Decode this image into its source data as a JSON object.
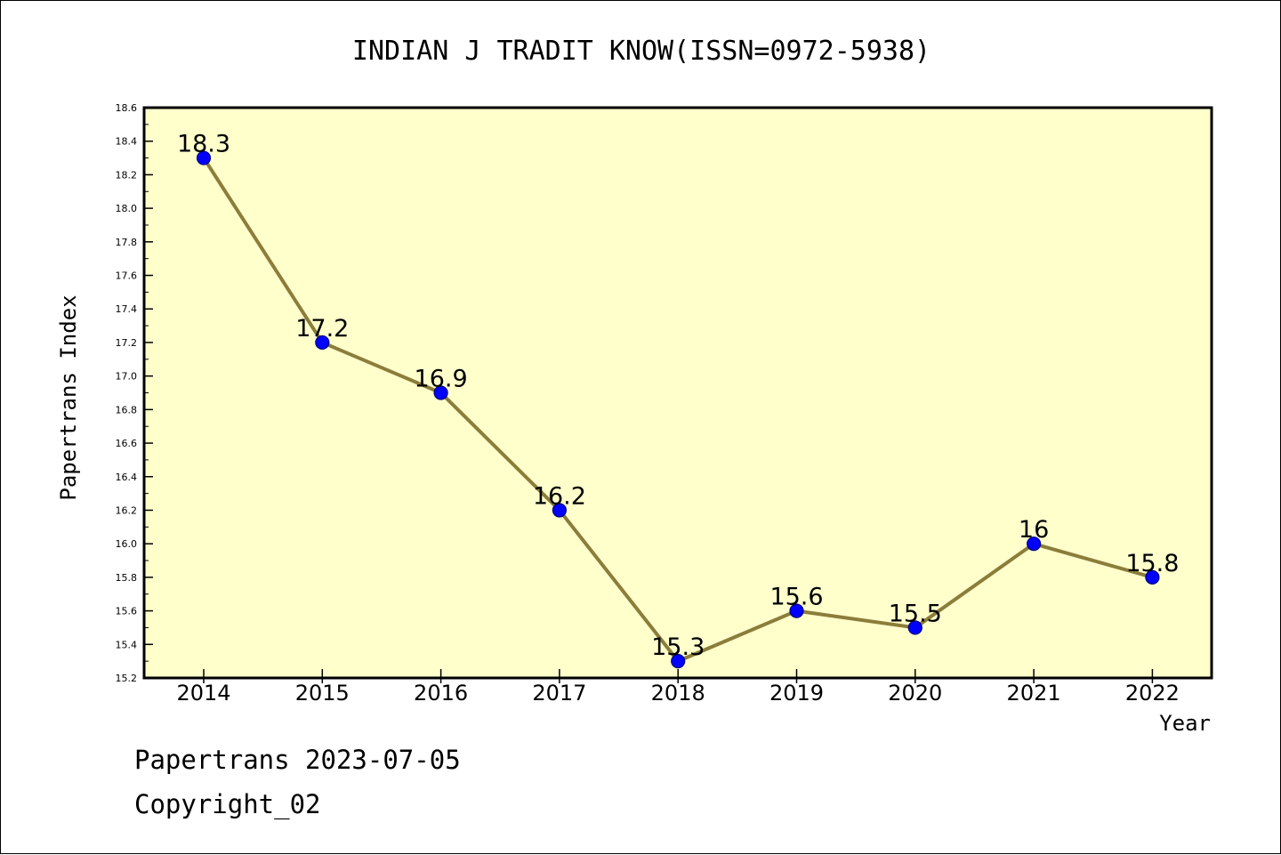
{
  "chart_data": {
    "type": "line",
    "title": "INDIAN J TRADIT KNOW(ISSN=0972-5938)",
    "xlabel": "Year",
    "ylabel": "Papertrans Index",
    "categories": [
      "2014",
      "2015",
      "2016",
      "2017",
      "2018",
      "2019",
      "2020",
      "2021",
      "2022"
    ],
    "series": [
      {
        "values": [
          18.3,
          17.2,
          16.9,
          16.2,
          15.3,
          15.6,
          15.5,
          16.0,
          15.8
        ],
        "labels": [
          "18.3",
          "17.2",
          "16.9",
          "16.2",
          "15.3",
          "15.6",
          "15.5",
          "16",
          "15.8"
        ]
      }
    ],
    "ylim": [
      15.2,
      18.6
    ],
    "yticks": [
      "15.2",
      "15.4",
      "15.6",
      "15.8",
      "16.0",
      "16.2",
      "16.4",
      "16.6",
      "16.8",
      "17.0",
      "17.2",
      "17.4",
      "17.6",
      "17.8",
      "18.0",
      "18.2",
      "18.4",
      "18.6"
    ],
    "grid": false,
    "colors": {
      "plot_background": "#ffffcc",
      "line": "#8b7d3a",
      "marker_fill": "#0000ff",
      "marker_edge": "#000080"
    }
  },
  "footer": {
    "line1": "Papertrans 2023-07-05",
    "line2": "Copyright_02"
  }
}
